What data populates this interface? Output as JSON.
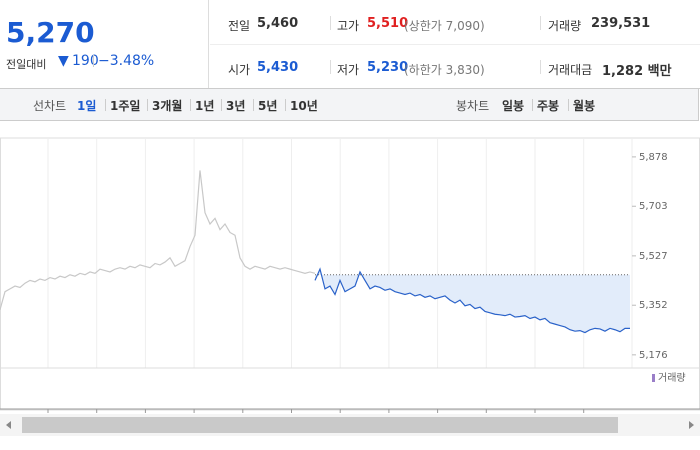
{
  "header": {
    "price": "5,270",
    "change_label": "전일대비",
    "change": "190",
    "change_pct": "−3.48%",
    "prev_close_label": "전일",
    "prev_close": "5,460",
    "high_label": "고가",
    "high": "5,510",
    "upper_limit": "(상한가 7,090)",
    "volume_label": "거래량",
    "volume": "239,531",
    "open_label": "시가",
    "open": "5,430",
    "low_label": "저가",
    "low": "5,230",
    "lower_limit": "(하한가 3,830)",
    "amount_label": "거래대금",
    "amount": "1,282 백만"
  },
  "tabs": {
    "line_label": "선차트",
    "line": [
      "1일",
      "1주일",
      "3개월",
      "1년",
      "3년",
      "5년",
      "10년"
    ],
    "candle_label": "봉차트",
    "candle": [
      "일봉",
      "주봉",
      "월봉"
    ]
  },
  "chart_data": {
    "type": "line",
    "volume_legend": "거래량",
    "reference": 5460,
    "xlim": [
      0,
      126
    ],
    "ylim": [
      5140,
      5945
    ],
    "yticks": [
      {
        "value": 5878,
        "label": "5,878"
      },
      {
        "value": 5703,
        "label": "5,703"
      },
      {
        "value": 5527,
        "label": "5,527"
      },
      {
        "value": 5352,
        "label": "5,352"
      },
      {
        "value": 5176,
        "label": "5,176"
      }
    ],
    "series": [
      {
        "color": "#c8c8c8",
        "x": [
          0,
          1,
          2,
          3,
          4,
          5,
          6,
          7,
          8,
          9,
          10,
          11,
          12,
          13,
          14,
          15,
          16,
          17,
          18,
          19,
          20,
          21,
          22,
          23,
          24,
          25,
          26,
          27,
          28,
          29,
          30,
          31,
          32,
          33,
          34,
          35,
          36,
          37,
          38,
          39,
          40,
          41,
          42,
          43,
          44,
          45,
          46,
          47,
          48,
          49,
          50,
          51,
          52,
          53,
          54,
          55,
          56,
          57,
          58,
          59,
          60,
          61,
          62,
          63
        ],
        "values": [
          5336,
          5400,
          5410,
          5420,
          5415,
          5430,
          5440,
          5435,
          5445,
          5440,
          5450,
          5445,
          5455,
          5450,
          5460,
          5455,
          5465,
          5460,
          5470,
          5465,
          5480,
          5475,
          5470,
          5480,
          5485,
          5480,
          5490,
          5485,
          5495,
          5490,
          5485,
          5500,
          5495,
          5505,
          5520,
          5490,
          5500,
          5510,
          5560,
          5600,
          5830,
          5680,
          5640,
          5660,
          5620,
          5640,
          5610,
          5600,
          5520,
          5490,
          5480,
          5490,
          5485,
          5480,
          5490,
          5485,
          5480,
          5485,
          5480,
          5475,
          5470,
          5465,
          5470,
          5465
        ]
      },
      {
        "color": "#2a62c9",
        "x": [
          63,
          64,
          65,
          66,
          67,
          68,
          69,
          70,
          71,
          72,
          73,
          74,
          75,
          76,
          77,
          78,
          79,
          80,
          81,
          82,
          83,
          84,
          85,
          86,
          87,
          88,
          89,
          90,
          91,
          92,
          93,
          94,
          95,
          96,
          97,
          98,
          99,
          100,
          101,
          102,
          103,
          104,
          105,
          106,
          107,
          108,
          109,
          110,
          111,
          112,
          113,
          114,
          115,
          116,
          117,
          118,
          119,
          120,
          121,
          122,
          123,
          124,
          125,
          126
        ],
        "values": [
          5440,
          5480,
          5410,
          5420,
          5390,
          5440,
          5400,
          5410,
          5420,
          5470,
          5440,
          5410,
          5420,
          5415,
          5405,
          5410,
          5400,
          5395,
          5390,
          5395,
          5385,
          5390,
          5380,
          5385,
          5375,
          5380,
          5385,
          5370,
          5360,
          5370,
          5350,
          5355,
          5340,
          5345,
          5330,
          5325,
          5320,
          5318,
          5315,
          5320,
          5310,
          5312,
          5315,
          5305,
          5310,
          5300,
          5305,
          5290,
          5285,
          5280,
          5275,
          5265,
          5260,
          5262,
          5255,
          5265,
          5270,
          5268,
          5260,
          5270,
          5265,
          5258,
          5270,
          5270
        ]
      }
    ]
  }
}
